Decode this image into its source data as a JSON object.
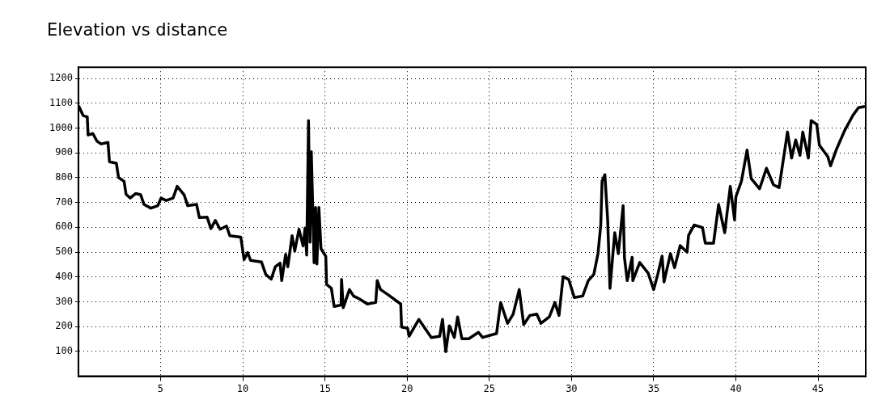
{
  "chart_data": {
    "type": "line",
    "title": "Elevation vs distance",
    "xlim": [
      0,
      47.9
    ],
    "ylim": [
      0,
      1245
    ],
    "xticks": [
      5,
      10,
      15,
      20,
      25,
      30,
      35,
      40,
      45
    ],
    "yticks": [
      100,
      200,
      300,
      400,
      500,
      600,
      700,
      800,
      900,
      1000,
      1100,
      1200
    ],
    "grid": true,
    "legend": false,
    "marker": "none",
    "line_style": "solid",
    "series": [
      {
        "color": "#000000",
        "x": [
          0.03,
          0.29,
          0.54,
          0.59,
          0.88,
          1.13,
          1.38,
          1.8,
          1.89,
          2.31,
          2.44,
          2.78,
          2.9,
          3.15,
          3.48,
          3.79,
          3.99,
          4.41,
          4.83,
          5.03,
          5.34,
          5.76,
          6.01,
          6.43,
          6.65,
          7.19,
          7.36,
          7.83,
          8.06,
          8.33,
          8.62,
          9.01,
          9.21,
          9.88,
          10.08,
          10.3,
          10.47,
          11.14,
          11.4,
          11.73,
          11.98,
          12.27,
          12.37,
          12.61,
          12.74,
          13.0,
          13.16,
          13.42,
          13.67,
          13.79,
          13.89,
          14.0,
          14.09,
          14.17,
          14.34,
          14.43,
          14.51,
          14.63,
          14.76,
          15.05,
          15.1,
          15.39,
          15.56,
          15.98,
          16.01,
          16.11,
          16.49,
          16.74,
          17.08,
          17.58,
          18.09,
          18.18,
          18.38,
          18.85,
          19.61,
          19.66,
          20.03,
          20.12,
          20.71,
          21.47,
          21.98,
          22.15,
          22.35,
          22.57,
          22.87,
          23.07,
          23.33,
          23.75,
          24.34,
          24.59,
          25.44,
          25.69,
          26.11,
          26.45,
          26.82,
          27.09,
          27.47,
          27.89,
          28.14,
          28.65,
          28.99,
          29.24,
          29.49,
          29.83,
          30.17,
          30.68,
          31.02,
          31.36,
          31.61,
          31.78,
          31.86,
          32.03,
          32.2,
          32.34,
          32.63,
          32.85,
          33.14,
          33.22,
          33.39,
          33.69,
          33.73,
          34.15,
          34.66,
          35.0,
          35.25,
          35.51,
          35.63,
          36.02,
          36.27,
          36.61,
          37.03,
          37.12,
          37.46,
          37.97,
          38.14,
          38.64,
          38.95,
          39.32,
          39.66,
          39.92,
          40.0,
          40.34,
          40.68,
          40.93,
          41.44,
          41.86,
          42.29,
          42.63,
          43.14,
          43.39,
          43.64,
          43.9,
          44.07,
          44.41,
          44.58,
          44.92,
          45.08,
          45.59,
          45.76,
          46.1,
          46.61,
          47.12,
          47.46,
          47.85
        ],
        "values": [
          1087,
          1050,
          1045,
          972,
          978,
          947,
          936,
          942,
          864,
          858,
          801,
          785,
          733,
          718,
          736,
          731,
          692,
          677,
          687,
          718,
          708,
          718,
          765,
          731,
          687,
          692,
          639,
          641,
          595,
          628,
          592,
          605,
          566,
          560,
          470,
          498,
          467,
          460,
          410,
          391,
          441,
          456,
          385,
          491,
          441,
          566,
          504,
          592,
          525,
          597,
          488,
          1030,
          540,
          905,
          457,
          680,
          452,
          680,
          514,
          483,
          370,
          354,
          281,
          287,
          390,
          276,
          349,
          323,
          312,
          291,
          297,
          385,
          349,
          328,
          291,
          198,
          193,
          161,
          229,
          156,
          161,
          229,
          99,
          203,
          156,
          239,
          151,
          151,
          177,
          156,
          172,
          297,
          213,
          250,
          349,
          208,
          245,
          250,
          213,
          239,
          297,
          245,
          401,
          390,
          317,
          323,
          385,
          411,
          494,
          609,
          786,
          812,
          630,
          354,
          578,
          494,
          687,
          479,
          385,
          479,
          385,
          458,
          416,
          349,
          411,
          484,
          380,
          494,
          437,
          526,
          500,
          567,
          609,
          599,
          536,
          536,
          692,
          578,
          765,
          630,
          723,
          786,
          911,
          797,
          755,
          838,
          771,
          760,
          984,
          879,
          952,
          890,
          984,
          879,
          1030,
          1015,
          931,
          885,
          848,
          911,
          989,
          1051,
          1082,
          1087
        ]
      }
    ]
  }
}
